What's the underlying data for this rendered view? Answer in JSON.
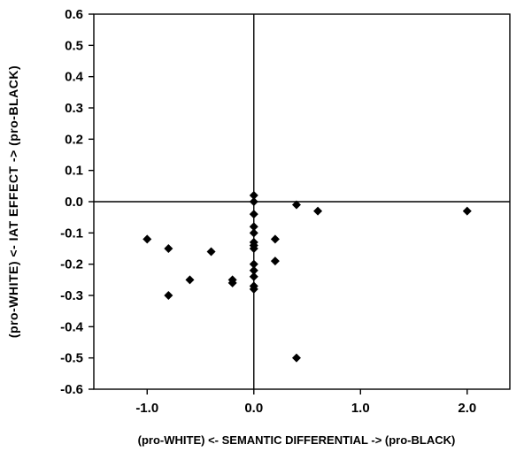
{
  "chart_data": {
    "type": "scatter",
    "title": "",
    "xlabel": "(pro-WHITE)  <-  SEMANTIC DIFFERENTIAL  ->  (pro-BLACK)",
    "ylabel": "(pro-WHITE)  <-  IAT  EFFECT  ->  (pro-BLACK)",
    "xlim": [
      -1.5,
      2.4
    ],
    "ylim": [
      -0.6,
      0.6
    ],
    "xticks": [
      -1.0,
      0.0,
      1.0,
      2.0
    ],
    "xtick_labels": [
      "-1.0",
      "0.0",
      "1.0",
      "2.0"
    ],
    "yticks": [
      0.6,
      0.5,
      0.4,
      0.3,
      0.2,
      0.1,
      0.0,
      -0.1,
      -0.2,
      -0.3,
      -0.4,
      -0.5,
      -0.6
    ],
    "ytick_labels": [
      "0.6",
      "0.5",
      "0.4",
      "0.3",
      "0.2",
      "0.1",
      "0.0",
      "-0.1",
      "-0.2",
      "-0.3",
      "-0.4",
      "-0.5",
      "-0.6"
    ],
    "reference_lines": {
      "x": 0.0,
      "y": 0.0
    },
    "grid": false,
    "marker": "diamond",
    "marker_color": "#000000",
    "points": [
      {
        "x": -1.0,
        "y": -0.12
      },
      {
        "x": -0.8,
        "y": -0.15
      },
      {
        "x": -0.8,
        "y": -0.3
      },
      {
        "x": -0.6,
        "y": -0.25
      },
      {
        "x": -0.4,
        "y": -0.16
      },
      {
        "x": -0.2,
        "y": -0.25
      },
      {
        "x": -0.2,
        "y": -0.26
      },
      {
        "x": 0.0,
        "y": 0.02
      },
      {
        "x": 0.0,
        "y": 0.0
      },
      {
        "x": 0.0,
        "y": -0.04
      },
      {
        "x": 0.0,
        "y": -0.08
      },
      {
        "x": 0.0,
        "y": -0.1
      },
      {
        "x": 0.0,
        "y": -0.13
      },
      {
        "x": 0.0,
        "y": -0.14
      },
      {
        "x": 0.0,
        "y": -0.15
      },
      {
        "x": 0.0,
        "y": -0.2
      },
      {
        "x": 0.0,
        "y": -0.22
      },
      {
        "x": 0.0,
        "y": -0.24
      },
      {
        "x": 0.0,
        "y": -0.27
      },
      {
        "x": 0.0,
        "y": -0.28
      },
      {
        "x": 0.2,
        "y": -0.12
      },
      {
        "x": 0.2,
        "y": -0.19
      },
      {
        "x": 0.4,
        "y": -0.01
      },
      {
        "x": 0.4,
        "y": -0.5
      },
      {
        "x": 0.6,
        "y": -0.03
      },
      {
        "x": 2.0,
        "y": -0.03
      }
    ]
  }
}
